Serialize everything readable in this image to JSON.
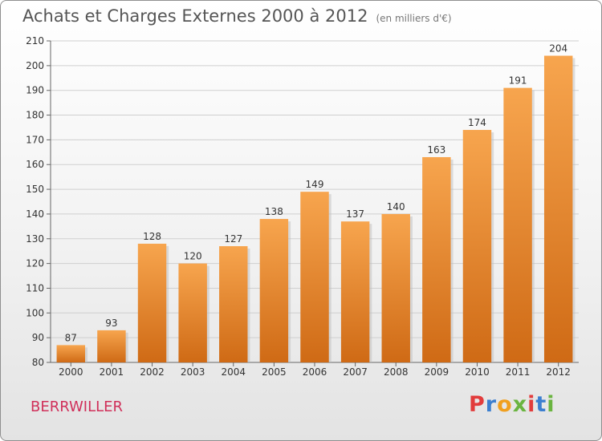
{
  "header": {
    "title": "Achats et Charges Externes 2000 à 2012",
    "unit": "(en milliers d'€)"
  },
  "footer": {
    "commune": "BERRWILLER",
    "logo": "Proxiti"
  },
  "colors": {
    "bar_top": "#f7a54e",
    "bar_bottom": "#cf6a15",
    "commune": "#d0305a",
    "logo_letters": [
      "#e23c3c",
      "#3c7fd0",
      "#f0a020",
      "#6ab440",
      "#e23c3c",
      "#3c7fd0",
      "#6ab440"
    ]
  },
  "chart_data": {
    "type": "bar",
    "title": "Achats et Charges Externes 2000 à 2012",
    "subtitle": "(en milliers d'€)",
    "categories": [
      "2000",
      "2001",
      "2002",
      "2003",
      "2004",
      "2005",
      "2006",
      "2007",
      "2008",
      "2009",
      "2010",
      "2011",
      "2012"
    ],
    "values": [
      87,
      93,
      128,
      120,
      127,
      138,
      149,
      137,
      140,
      163,
      174,
      191,
      204
    ],
    "ylim": [
      80,
      210
    ],
    "yticks": [
      80,
      90,
      100,
      110,
      120,
      130,
      140,
      150,
      160,
      170,
      180,
      190,
      200,
      210
    ],
    "grid": true,
    "legend": "none"
  }
}
